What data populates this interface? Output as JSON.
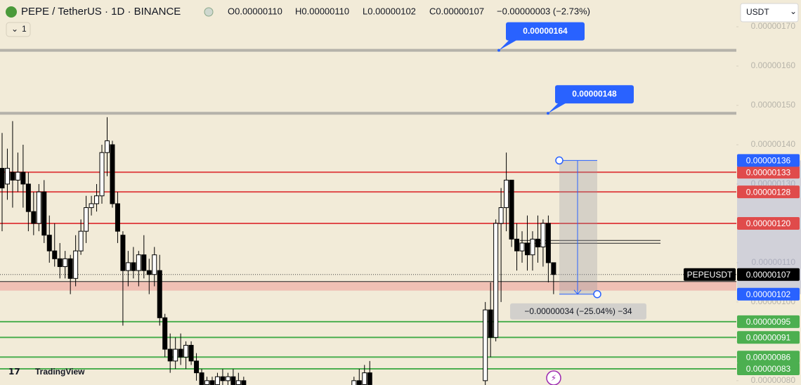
{
  "header": {
    "symbol": "PEPE / TetherUS · 1D · BINANCE",
    "ohlc": [
      "O0.00000110",
      "H0.00000110",
      "L0.00000102",
      "C0.00000107"
    ],
    "change": "−0.00000003 (−2.73%)",
    "badge": "1",
    "currency": "USDT"
  },
  "branding": "TradingView",
  "chart_data": {
    "type": "candlestick",
    "x": [
      0,
      1,
      2,
      3,
      4,
      5,
      6,
      7,
      8,
      9,
      10,
      11,
      12,
      13,
      14,
      15,
      16,
      17,
      18,
      19,
      20,
      21,
      22,
      23,
      24,
      25,
      26,
      27,
      28,
      29,
      30,
      31,
      32,
      33,
      34,
      35,
      36,
      37,
      38,
      39,
      40,
      41,
      42,
      43,
      44,
      45,
      46,
      67,
      68,
      69,
      70,
      92,
      93,
      94,
      95,
      96,
      97,
      98,
      99,
      100,
      101,
      102,
      103,
      104,
      105
    ],
    "open": [
      1.34e-06,
      1.3e-06,
      1.33e-06,
      1.31e-06,
      1.33e-06,
      1.3e-06,
      1.23e-06,
      1.2e-06,
      1.28e-06,
      1.17e-06,
      1.13e-06,
      1.11e-06,
      1.09e-06,
      1.11e-06,
      1.06e-06,
      1.13e-06,
      1.18e-06,
      1.24e-06,
      1.25e-06,
      1.27e-06,
      1.38e-06,
      1.4e-06,
      1.25e-06,
      1.17e-06,
      1.08e-06,
      1.1e-06,
      1.08e-06,
      1.12e-06,
      1.08e-06,
      1.07e-06,
      1.08e-06,
      9.6e-07,
      8.8e-07,
      8.5e-07,
      8.8e-07,
      8.6e-07,
      8.9e-07,
      8.5e-07,
      8.2e-07,
      7.9e-07,
      8e-07,
      7.9e-07,
      8.1e-07,
      8e-07,
      8.1e-07,
      7.9e-07,
      8e-07,
      7.8e-07,
      8e-07,
      7.9e-07,
      8.2e-07,
      8e-07,
      9.8e-07,
      9.1e-07,
      1.2e-06,
      1.24e-06,
      1.31e-06,
      1.16e-06,
      1.13e-06,
      1.15e-06,
      1.12e-06,
      1.16e-06,
      1.14e-06,
      1.2e-06,
      1.1e-06
    ],
    "high": [
      1.43e-06,
      1.39e-06,
      1.46e-06,
      1.38e-06,
      1.4e-06,
      1.33e-06,
      1.28e-06,
      1.3e-06,
      1.31e-06,
      1.22e-06,
      1.2e-06,
      1.15e-06,
      1.13e-06,
      1.12e-06,
      1.17e-06,
      1.21e-06,
      1.27e-06,
      1.27e-06,
      1.3e-06,
      1.4e-06,
      1.47e-06,
      1.41e-06,
      1.28e-06,
      1.18e-06,
      1.13e-06,
      1.14e-06,
      1.13e-06,
      1.17e-06,
      1.11e-06,
      1.14e-06,
      1.12e-06,
      9.7e-07,
      9.2e-07,
      9.1e-07,
      9.2e-07,
      9e-07,
      9e-07,
      8.7e-07,
      8.3e-07,
      8.1e-07,
      8.1e-07,
      8.2e-07,
      8.3e-07,
      8.2e-07,
      8.3e-07,
      8.2e-07,
      8.1e-07,
      8.1e-07,
      8.3e-07,
      8.4e-07,
      8.5e-07,
      1e-06,
      1.05e-06,
      1.21e-06,
      1.29e-06,
      1.38e-06,
      1.31e-06,
      1.2e-06,
      1.18e-06,
      1.22e-06,
      1.18e-06,
      1.22e-06,
      1.21e-06,
      1.22e-06,
      1.1e-06
    ],
    "low": [
      1.18e-06,
      1.26e-06,
      1.24e-06,
      1.28e-06,
      1.24e-06,
      1.18e-06,
      1.17e-06,
      1.18e-06,
      1.15e-06,
      1.1e-06,
      1.09e-06,
      1.06e-06,
      1.06e-06,
      1.02e-06,
      1.04e-06,
      1.12e-06,
      1.15e-06,
      1.22e-06,
      1.23e-06,
      1.25e-06,
      1.32e-06,
      1.24e-06,
      1.15e-06,
      9.4e-07,
      1.04e-06,
      1.06e-06,
      1.04e-06,
      1.06e-06,
      1.02e-06,
      1.04e-06,
      9.4e-07,
      8.6e-07,
      8.2e-07,
      8.3e-07,
      8.4e-07,
      8.3e-07,
      8.4e-07,
      8e-07,
      7.8e-07,
      7.7e-07,
      7.8e-07,
      7.7e-07,
      7.8e-07,
      7.8e-07,
      7.8e-07,
      7.7e-07,
      7.7e-07,
      7.5e-07,
      7.7e-07,
      7.7e-07,
      7.8e-07,
      7.6e-07,
      8.6e-07,
      9e-07,
      1e-06,
      1.18e-06,
      1.14e-06,
      1.08e-06,
      1.1e-06,
      1.08e-06,
      1.08e-06,
      1.1e-06,
      1.09e-06,
      1.05e-06,
      1.02e-06
    ],
    "close": [
      1.29e-06,
      1.34e-06,
      1.31e-06,
      1.33e-06,
      1.3e-06,
      1.23e-06,
      1.2e-06,
      1.28e-06,
      1.17e-06,
      1.13e-06,
      1.11e-06,
      1.09e-06,
      1.11e-06,
      1.06e-06,
      1.13e-06,
      1.18e-06,
      1.24e-06,
      1.25e-06,
      1.27e-06,
      1.38e-06,
      1.41e-06,
      1.25e-06,
      1.18e-06,
      1.08e-06,
      1.1e-06,
      1.08e-06,
      1.12e-06,
      1.08e-06,
      1.07e-06,
      1.12e-06,
      9.6e-07,
      8.8e-07,
      8.5e-07,
      8.8e-07,
      8.6e-07,
      8.9e-07,
      8.5e-07,
      8.2e-07,
      7.9e-07,
      8e-07,
      7.9e-07,
      8.1e-07,
      8e-07,
      8.1e-07,
      7.9e-07,
      8e-07,
      7.8e-07,
      8e-07,
      7.9e-07,
      8.2e-07,
      7.9e-07,
      9.8e-07,
      9.1e-07,
      1.2e-06,
      1.24e-06,
      1.31e-06,
      1.16e-06,
      1.13e-06,
      1.15e-06,
      1.12e-06,
      1.16e-06,
      1.14e-06,
      1.2e-06,
      1.1e-06,
      1.07e-06
    ],
    "up_color": "#ffffff",
    "down_color": "#000000",
    "xlim": [
      -0.4,
      139.8
    ],
    "ylim": [
      7.89e-07,
      1.768e-06
    ],
    "yticks": [
      {
        "value": 8e-07,
        "label": "0.00000080"
      },
      {
        "value": 9e-07,
        "label": "0.00000090"
      },
      {
        "value": 1e-06,
        "label": "0.00000100"
      },
      {
        "value": 1.1e-06,
        "label": "0.00000110"
      },
      {
        "value": 1.2e-06,
        "label": "0.00000120"
      },
      {
        "value": 1.3e-06,
        "label": "0.00000130"
      },
      {
        "value": 1.4e-06,
        "label": "0.00000140"
      },
      {
        "value": 1.5e-06,
        "label": "0.00000150"
      },
      {
        "value": 1.6e-06,
        "label": "0.00000160"
      },
      {
        "value": 1.7e-06,
        "label": "0.00000170"
      }
    ],
    "callouts": [
      {
        "value": 1.64e-06,
        "label": "0.00000164"
      },
      {
        "value": 1.48e-06,
        "label": "0.00000148"
      }
    ],
    "levels": [
      {
        "value": 1.33e-06,
        "label": "0.00000133",
        "color": "#e04b4b"
      },
      {
        "value": 1.28e-06,
        "label": "0.00000128",
        "color": "#e04b4b"
      },
      {
        "value": 1.2e-06,
        "label": "0.00000120",
        "color": "#e04b4b"
      },
      {
        "value": 9.5e-07,
        "label": "0.00000095",
        "color": "#4caf50"
      },
      {
        "value": 9.1e-07,
        "label": "0.00000091",
        "color": "#4caf50"
      },
      {
        "value": 8.6e-07,
        "label": "0.00000086",
        "color": "#4caf50"
      },
      {
        "value": 8.3e-07,
        "label": "0.00000083",
        "color": "#4caf50"
      }
    ],
    "zone": [
      1.029e-06,
      1.052e-06
    ],
    "ray": 1.153e-06,
    "last_price": {
      "name": "PEPEUSDT",
      "value": 1.07e-06,
      "label": "0.00000107"
    },
    "measure": {
      "from": {
        "value": 1.36e-06,
        "label": "0.00000136"
      },
      "to": {
        "value": 1.02e-06,
        "label": "0.00000102"
      },
      "text": "−0.00000034 (−25.04%) −34",
      "color": "#2962ff"
    }
  }
}
